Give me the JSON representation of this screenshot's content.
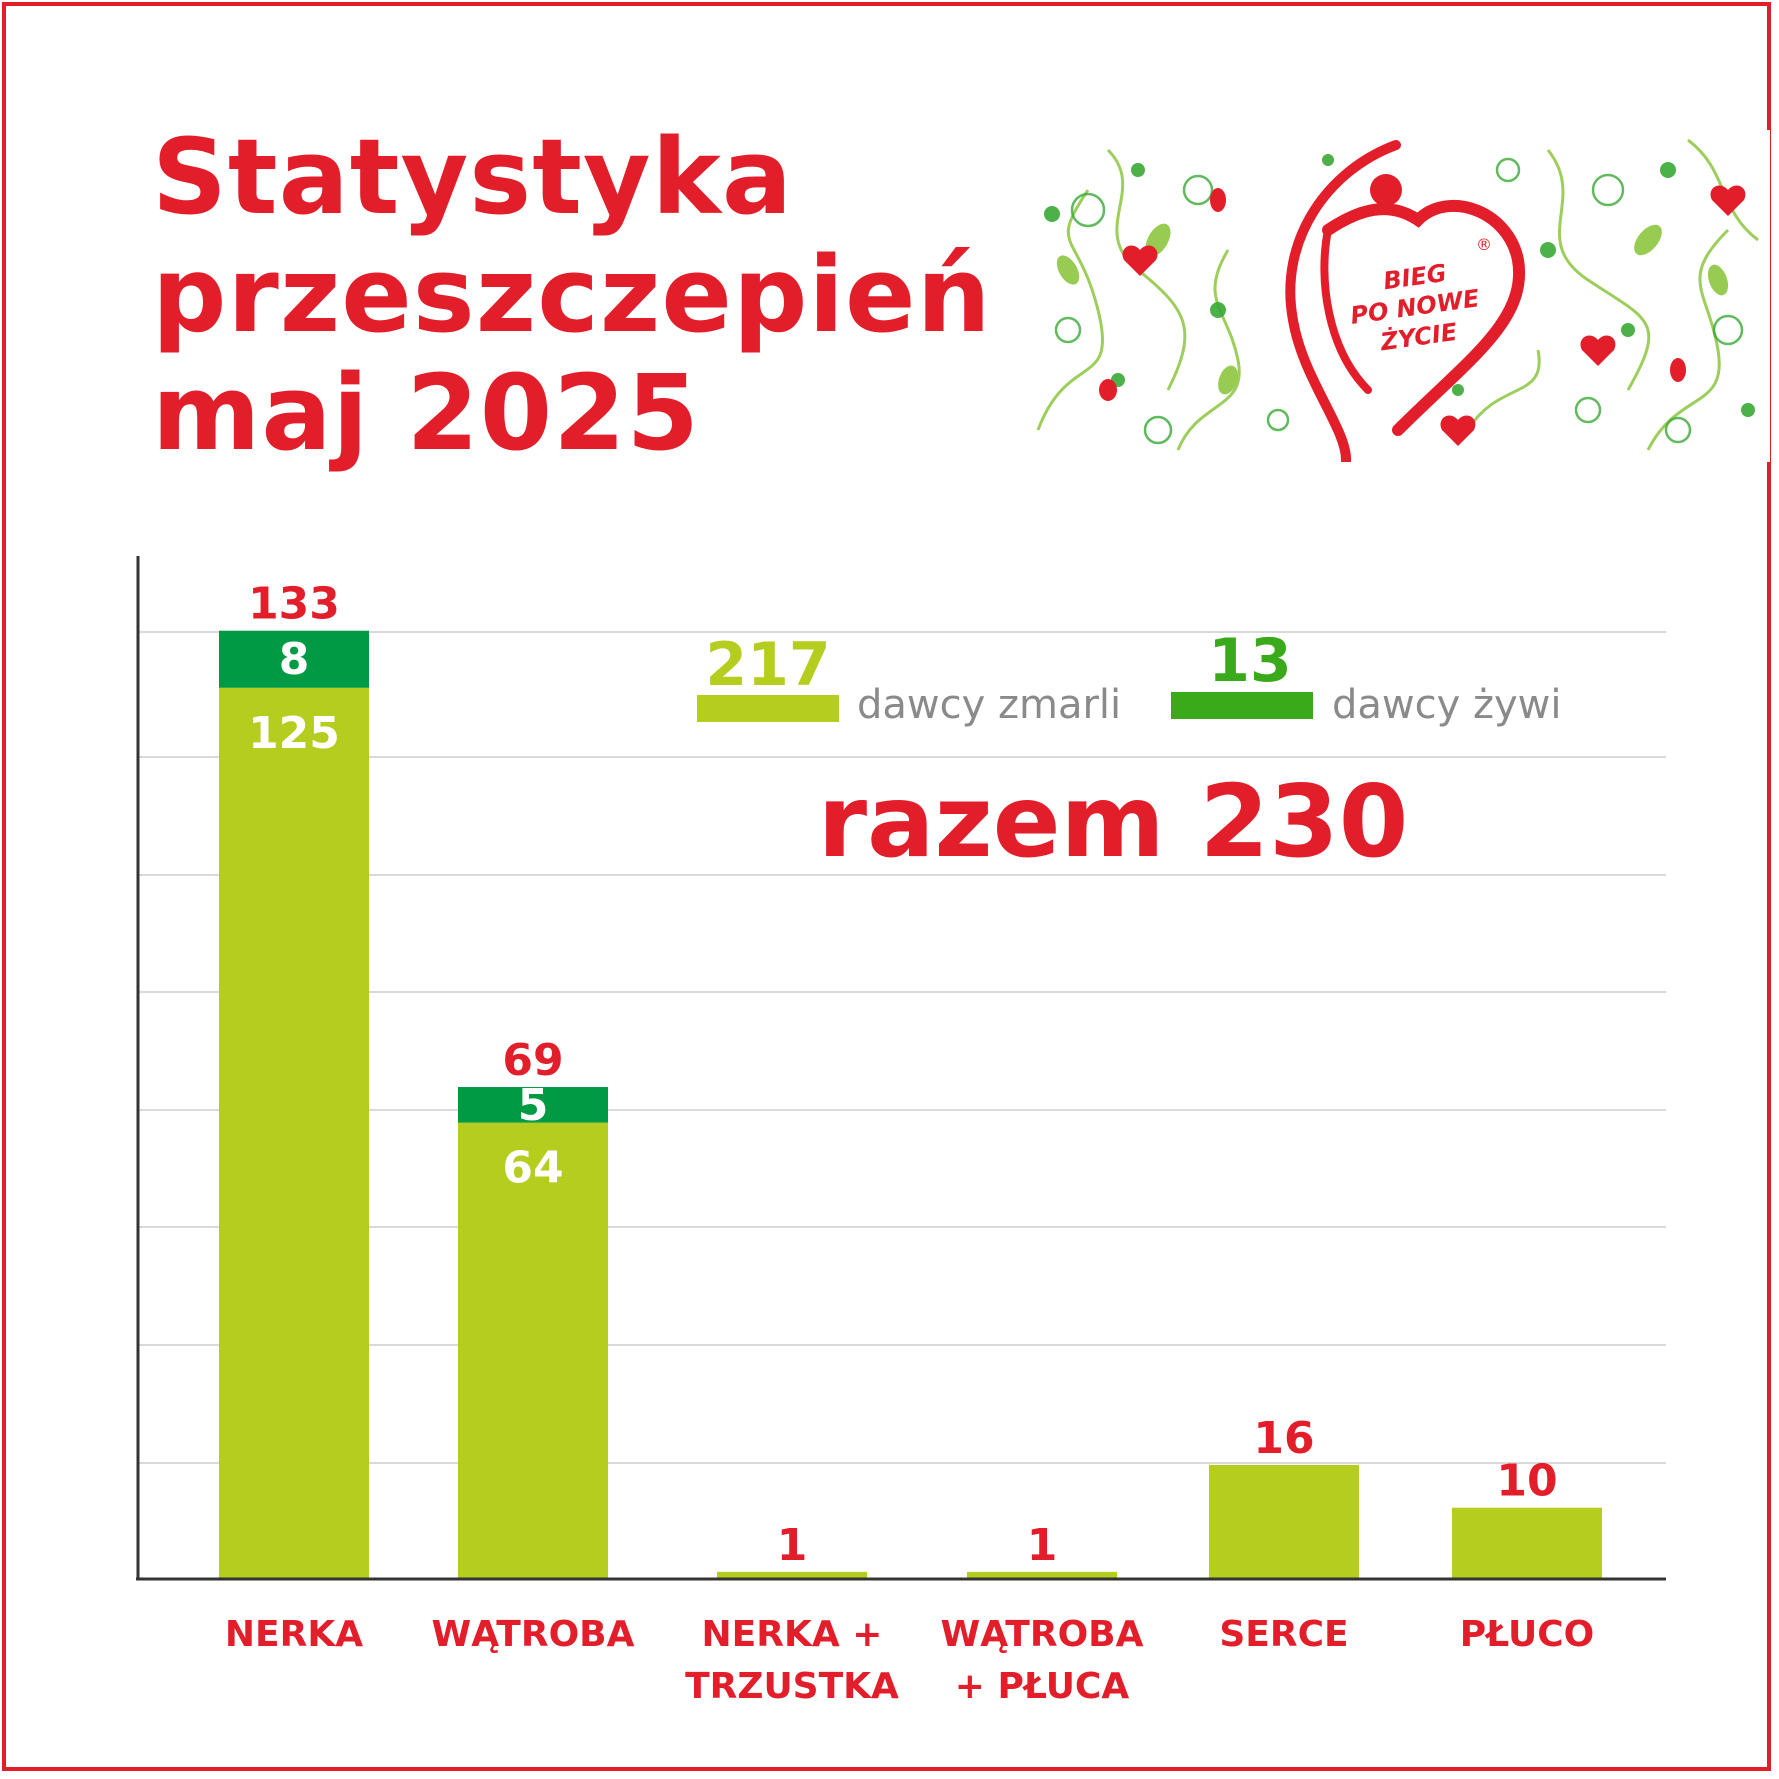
{
  "header": {
    "title_lines": [
      "Statystyka",
      "przeszczepień",
      "maj 2025"
    ]
  },
  "logo": {
    "lines": [
      "BIEG",
      "PO NOWE",
      "ŻYCIE"
    ],
    "mark": "®",
    "icon": "heart-runner-logo-icon"
  },
  "colors": {
    "red": "#e31e2b",
    "deceased": "#b5cd1e",
    "living": "#009a44",
    "living_legend": "#3aaa1a",
    "grid": "#d9d9d9",
    "axis": "#333333",
    "legend_text": "#8a8a8a"
  },
  "chart_data": {
    "type": "bar",
    "stacked": true,
    "categories": [
      [
        "NERKA"
      ],
      [
        "WĄTROBA"
      ],
      [
        "NERKA +",
        "TRZUSTKA"
      ],
      [
        "WĄTROBA",
        "+ PŁUCA"
      ],
      [
        "SERCE"
      ],
      [
        "PŁUCO"
      ]
    ],
    "series": [
      {
        "name": "dawcy zmarli",
        "values": [
          125,
          64,
          1,
          1,
          16,
          10
        ]
      },
      {
        "name": "dawcy żywi",
        "values": [
          8,
          5,
          0,
          0,
          0,
          0
        ]
      }
    ],
    "totals": [
      133,
      69,
      1,
      1,
      16,
      10
    ],
    "ylim": [
      0,
      140
    ],
    "grid": true,
    "legend": {
      "placement": "top-right",
      "items": [
        {
          "value": "217",
          "label": "dawcy zmarli"
        },
        {
          "value": "13",
          "label": "dawcy żywi"
        }
      ]
    },
    "total_label": "razem 230"
  }
}
